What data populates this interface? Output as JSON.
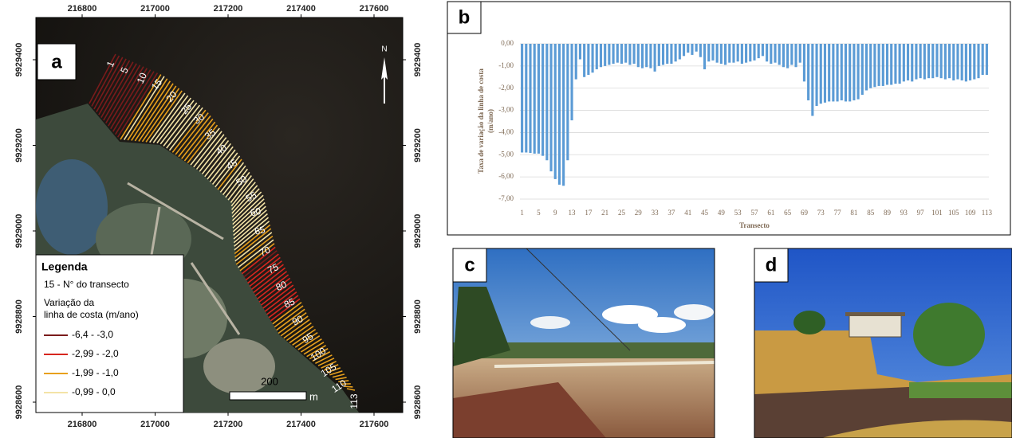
{
  "map": {
    "label": "a",
    "north": "N",
    "xticks": [
      216800,
      217000,
      217200,
      217400,
      217600
    ],
    "yticks": [
      9929400,
      9929200,
      9929000,
      9928800,
      9928600
    ],
    "transect_labels": [
      1,
      5,
      10,
      15,
      20,
      25,
      30,
      35,
      40,
      45,
      50,
      55,
      60,
      65,
      70,
      75,
      80,
      85,
      90,
      95,
      100,
      105,
      110,
      113
    ],
    "scale_label": "200",
    "scale_unit": "m",
    "legend": {
      "title": "Legenda",
      "note": "15 - N° do transecto",
      "heading": [
        "Variação da",
        "linha de costa (m/ano)"
      ],
      "items": [
        {
          "label": "-6,4 - -3,0",
          "min": -6.4,
          "max": -3.0,
          "color": "#7a1b1b"
        },
        {
          "label": "-2,99 - -2,0",
          "min": -2.99,
          "max": -2.0,
          "color": "#d7261e"
        },
        {
          "label": "-1,99 - -1,0",
          "min": -1.99,
          "max": -1.0,
          "color": "#e8a01c"
        },
        {
          "label": "-0,99 - 0,0",
          "min": -0.99,
          "max": 0.0,
          "color": "#f3e3a6"
        }
      ]
    }
  },
  "chart_data": {
    "type": "bar",
    "panel_label": "b",
    "y_label": [
      "Taxa de variação da linha de costa",
      "(m/ano)"
    ],
    "x_label": "Transecto",
    "color": "#5b9bd5",
    "grid": true,
    "ylim": [
      -7,
      0
    ],
    "yticks": [
      {
        "value": 0,
        "label": "0,00"
      },
      {
        "value": -1,
        "label": "-1,00"
      },
      {
        "value": -2,
        "label": "-2,00"
      },
      {
        "value": -3,
        "label": "-3,00"
      },
      {
        "value": -4,
        "label": "-4,00"
      },
      {
        "value": -5,
        "label": "-5,00"
      },
      {
        "value": -6,
        "label": "-6,00"
      },
      {
        "value": -7,
        "label": "-7,00"
      }
    ],
    "categories": [
      "1",
      null,
      null,
      null,
      "5",
      null,
      null,
      null,
      "9",
      null,
      null,
      null,
      "13",
      null,
      null,
      null,
      "17",
      null,
      null,
      null,
      "21",
      null,
      null,
      null,
      "25",
      null,
      null,
      null,
      "29",
      null,
      null,
      null,
      "33",
      null,
      null,
      null,
      "37",
      null,
      null,
      null,
      "41",
      null,
      null,
      null,
      "45",
      null,
      null,
      null,
      "49",
      null,
      null,
      null,
      "53",
      null,
      null,
      null,
      "57",
      null,
      null,
      null,
      "61",
      null,
      null,
      null,
      "65",
      null,
      null,
      null,
      "69",
      null,
      null,
      null,
      "73",
      null,
      null,
      null,
      "77",
      null,
      null,
      null,
      "81",
      null,
      null,
      null,
      "85",
      null,
      null,
      null,
      "89",
      null,
      null,
      null,
      "93",
      null,
      null,
      null,
      "97",
      null,
      null,
      null,
      "101",
      null,
      null,
      null,
      "105",
      null,
      null,
      null,
      "109",
      null,
      null,
      null,
      "113"
    ],
    "values": [
      -4.9,
      -4.9,
      -4.92,
      -4.95,
      -4.95,
      -5.05,
      -5.25,
      -5.75,
      -6.1,
      -6.35,
      -6.4,
      -5.25,
      -3.45,
      -1.6,
      -0.7,
      -1.5,
      -1.4,
      -1.3,
      -1.15,
      -1.05,
      -1.0,
      -0.95,
      -0.9,
      -0.85,
      -0.9,
      -0.85,
      -0.95,
      -0.9,
      -1.05,
      -1.1,
      -1.05,
      -1.1,
      -1.25,
      -1.0,
      -0.95,
      -0.9,
      -0.9,
      -0.8,
      -0.7,
      -0.55,
      -0.4,
      -0.5,
      -0.35,
      -0.6,
      -1.15,
      -0.8,
      -0.75,
      -0.85,
      -0.9,
      -0.95,
      -0.85,
      -0.85,
      -0.8,
      -0.9,
      -0.85,
      -0.8,
      -0.75,
      -0.65,
      -0.55,
      -0.8,
      -0.9,
      -0.85,
      -0.95,
      -1.05,
      -1.1,
      -0.95,
      -1.05,
      -0.85,
      -1.7,
      -2.55,
      -3.25,
      -2.8,
      -2.7,
      -2.65,
      -2.6,
      -2.6,
      -2.6,
      -2.55,
      -2.6,
      -2.6,
      -2.55,
      -2.5,
      -2.3,
      -2.1,
      -2.0,
      -1.95,
      -1.9,
      -1.9,
      -1.85,
      -1.85,
      -1.8,
      -1.8,
      -1.7,
      -1.65,
      -1.7,
      -1.6,
      -1.55,
      -1.6,
      -1.55,
      -1.55,
      -1.5,
      -1.55,
      -1.6,
      -1.55,
      -1.65,
      -1.6,
      -1.65,
      -1.7,
      -1.65,
      -1.6,
      -1.55,
      -1.4,
      -1.4
    ]
  },
  "photos": [
    {
      "label": "c"
    },
    {
      "label": "d"
    }
  ]
}
